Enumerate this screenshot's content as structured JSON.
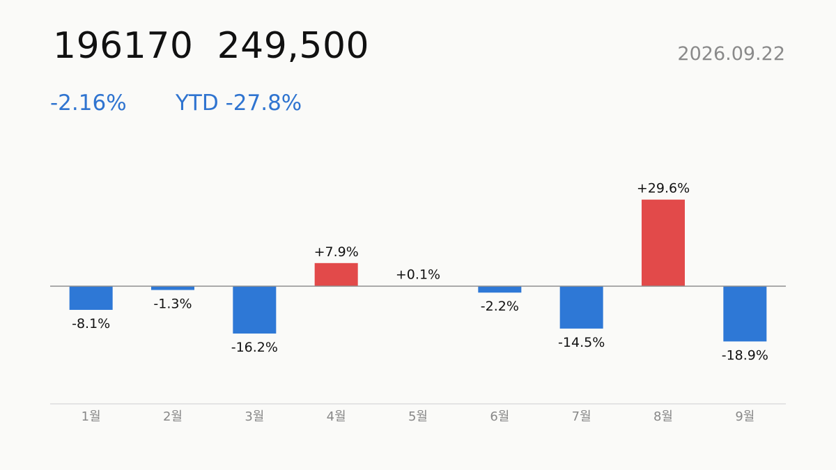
{
  "header": {
    "ticker": "196170",
    "price": "249,500",
    "date": "2026.09.22",
    "day_change": "-2.16%",
    "ytd_change": "YTD -27.8%"
  },
  "colors": {
    "up": "#e24a4a",
    "down": "#2e78d6",
    "text_change": "#2f74d0"
  },
  "chart_data": {
    "type": "bar",
    "categories": [
      "1월",
      "2월",
      "3월",
      "4월",
      "5월",
      "6월",
      "7월",
      "8월",
      "9월"
    ],
    "values": [
      -8.1,
      -1.3,
      -16.2,
      7.9,
      0.1,
      -2.2,
      -14.5,
      29.6,
      -18.9
    ],
    "labels": [
      "-8.1%",
      "-1.3%",
      "-16.2%",
      "+7.9%",
      "+0.1%",
      "-2.2%",
      "-14.5%",
      "+29.6%",
      "-18.9%"
    ],
    "title": "",
    "xlabel": "",
    "ylabel": "",
    "grid": false
  }
}
